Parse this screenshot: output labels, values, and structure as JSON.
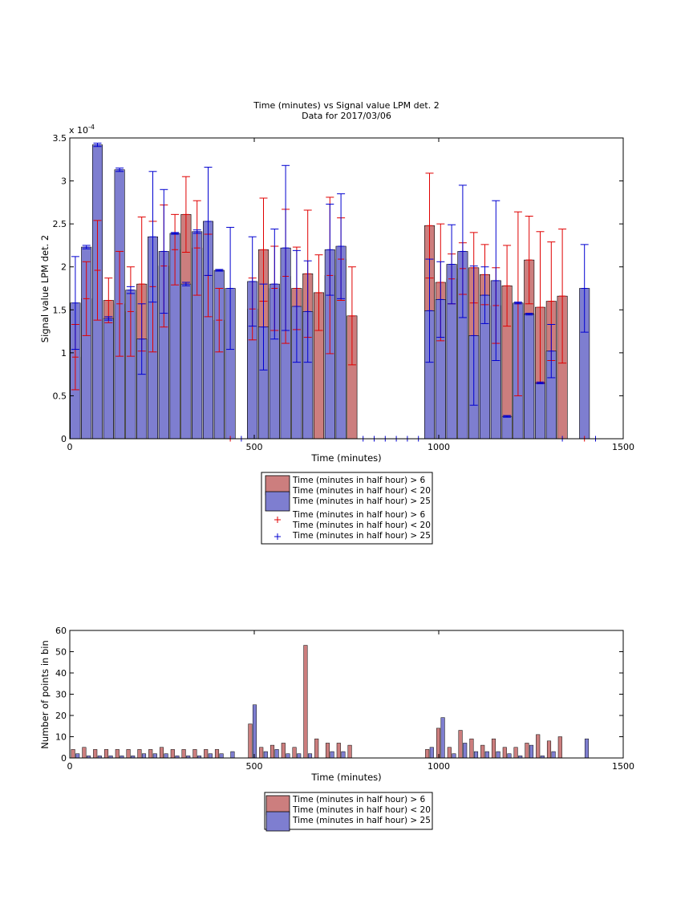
{
  "colors": {
    "red_fill": "#cc7e7e",
    "blue_fill": "#7e7ed0",
    "red_err": "#e00000",
    "blue_err": "#0000d0",
    "axes": "#000000"
  },
  "chart_data": [
    {
      "type": "bar",
      "title": "Time (minutes) vs Signal value LPM det. 2",
      "subtitle": "Data for 2017/03/06",
      "xlabel": "Time (minutes)",
      "ylabel": "Signal value LPM det. 2",
      "y_multiplier": "x 10",
      "y_multiplier_exp": "-4",
      "xlim": [
        0,
        1500
      ],
      "ylim": [
        0,
        3.5
      ],
      "xticks": [
        0,
        500,
        1000,
        1500
      ],
      "yticks": [
        0,
        0.5,
        1,
        1.5,
        2,
        2.5,
        3,
        3.5
      ],
      "ytick_labels": [
        "0",
        "0.5",
        "1",
        "1.5",
        "2",
        "2.5",
        "3",
        "3.5"
      ],
      "grid": false,
      "legend_position": "below-center",
      "legend": [
        "Time (minutes in half hour) > 6",
        "Time (minutes in half hour) < 20",
        "Time (minutes in half hour) > 25",
        "Time (minutes in half hour) > 6",
        "Time (minutes in half hour) < 20",
        "Time (minutes in half hour) > 25"
      ],
      "bar_width": 27,
      "series": [
        {
          "key": "red",
          "x": [
            15,
            45,
            75,
            105,
            135,
            165,
            195,
            225,
            255,
            285,
            315,
            345,
            375,
            405,
            435,
            495,
            525,
            555,
            585,
            615,
            645,
            675,
            705,
            735,
            765,
            975,
            1005,
            1035,
            1065,
            1095,
            1125,
            1155,
            1185,
            1215,
            1245,
            1275,
            1305,
            1335,
            1365
          ],
          "values": [
            0.95,
            1.63,
            1.96,
            1.61,
            1.57,
            1.48,
            1.8,
            1.77,
            2.01,
            2.2,
            2.61,
            2.22,
            1.9,
            1.38,
            0,
            1.51,
            2.2,
            1.75,
            1.89,
            1.75,
            1.92,
            1.7,
            1.9,
            2.09,
            1.43,
            2.48,
            1.82,
            1.86,
            1.98,
            1.99,
            1.91,
            1.55,
            1.78,
            1.57,
            2.08,
            1.53,
            1.6,
            1.66,
            0
          ],
          "err": [
            0.38,
            0.43,
            0.58,
            0.26,
            0.61,
            0.52,
            0.78,
            0.76,
            0.71,
            0.41,
            0.44,
            0.55,
            0.48,
            0.37,
            0,
            0.36,
            0.6,
            0.49,
            0.78,
            0.48,
            0.74,
            0.44,
            0.91,
            0.48,
            0.57,
            0.61,
            0.68,
            0.29,
            0.3,
            0.41,
            0.35,
            0.44,
            0.47,
            1.07,
            0.51,
            0.88,
            0.69,
            0.78,
            0
          ]
        },
        {
          "key": "blue",
          "x": [
            15,
            45,
            75,
            105,
            135,
            165,
            195,
            225,
            255,
            285,
            315,
            345,
            375,
            405,
            435,
            495,
            525,
            555,
            585,
            615,
            645,
            675,
            705,
            735,
            765,
            975,
            1005,
            1035,
            1065,
            1095,
            1125,
            1155,
            1185,
            1215,
            1245,
            1275,
            1305,
            1335,
            1365,
            1395
          ],
          "values": [
            1.58,
            2.23,
            3.42,
            1.4,
            3.13,
            1.73,
            1.16,
            2.35,
            2.18,
            2.39,
            1.8,
            2.41,
            2.53,
            1.96,
            1.75,
            1.83,
            1.3,
            1.8,
            2.22,
            1.54,
            1.48,
            0,
            2.2,
            2.24,
            0,
            1.49,
            1.62,
            2.03,
            2.18,
            1.2,
            1.67,
            1.84,
            0.26,
            1.58,
            1.45,
            0.65,
            1.02,
            0,
            0,
            1.75
          ],
          "err": [
            0.54,
            0.02,
            0.02,
            0.02,
            0.02,
            0.04,
            0.41,
            0.76,
            0.72,
            0.01,
            0.02,
            0.02,
            0.63,
            0.01,
            0.71,
            0.52,
            0.5,
            0.64,
            0.96,
            0.65,
            0.59,
            0,
            0.53,
            0.61,
            0,
            0.6,
            0.44,
            0.46,
            0.77,
            0.81,
            0.33,
            0.93,
            0.01,
            0.01,
            0.01,
            0.01,
            0.31,
            0,
            0,
            0.51
          ]
        }
      ],
      "zero_markers": {
        "red": [
          435,
          1395
        ],
        "blue": [
          465,
          795,
          825,
          855,
          885,
          915,
          945,
          1335,
          1425
        ]
      }
    },
    {
      "type": "bar",
      "title": "",
      "xlabel": "Time (minutes)",
      "ylabel": "Number of points in bin",
      "xlim": [
        0,
        1500
      ],
      "ylim": [
        0,
        60
      ],
      "xticks": [
        0,
        500,
        1000,
        1500
      ],
      "yticks": [
        0,
        10,
        20,
        30,
        40,
        50,
        60
      ],
      "grid": false,
      "legend_position": "below-center",
      "legend": [
        "Time (minutes in half hour) > 6",
        "Time (minutes in half hour) < 20",
        "Time (minutes in half hour) > 25"
      ],
      "bar_width": 10,
      "x": [
        15,
        45,
        75,
        105,
        135,
        165,
        195,
        225,
        255,
        285,
        315,
        345,
        375,
        405,
        435,
        495,
        525,
        555,
        585,
        615,
        645,
        675,
        705,
        735,
        765,
        975,
        1005,
        1035,
        1065,
        1095,
        1125,
        1155,
        1185,
        1215,
        1245,
        1275,
        1305,
        1335,
        1365,
        1395
      ],
      "series": [
        {
          "key": "red",
          "values": [
            4,
            5,
            4,
            4,
            4,
            4,
            4,
            4,
            5,
            4,
            4,
            4,
            4,
            4,
            0,
            16,
            5,
            6,
            7,
            5,
            53,
            9,
            7,
            7,
            6,
            4,
            14,
            5,
            13,
            9,
            6,
            9,
            5,
            5,
            7,
            11,
            8,
            10,
            0,
            0
          ]
        },
        {
          "key": "blue",
          "values": [
            2,
            1,
            1,
            1,
            1,
            1,
            2,
            2,
            2,
            1,
            1,
            1,
            2,
            2,
            3,
            25,
            3,
            4,
            2,
            2,
            2,
            0,
            3,
            3,
            0,
            5,
            19,
            2,
            7,
            3,
            3,
            3,
            2,
            1,
            6,
            1,
            3,
            0,
            0,
            9
          ]
        }
      ]
    }
  ]
}
